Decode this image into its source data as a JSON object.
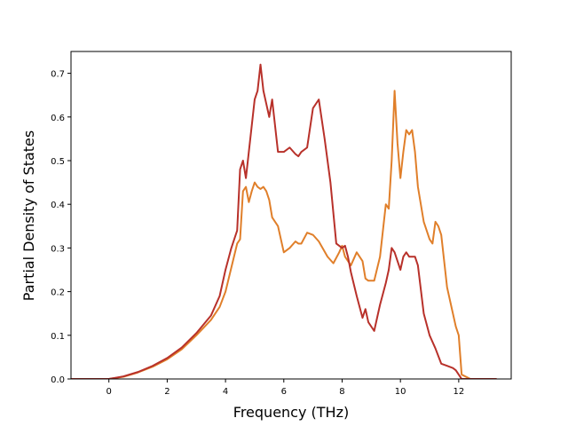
{
  "chart_data": {
    "type": "line",
    "xlabel": "Frequency (THz)",
    "ylabel": "Partial Density of States",
    "xlim": [
      -1.3,
      13.8
    ],
    "ylim": [
      0,
      0.75
    ],
    "xticks": [
      0,
      2,
      4,
      6,
      8,
      10,
      12
    ],
    "yticks": [
      0.0,
      0.1,
      0.2,
      0.3,
      0.4,
      0.5,
      0.6,
      0.7
    ],
    "xtick_labels": [
      "0",
      "2",
      "4",
      "6",
      "8",
      "10",
      "12"
    ],
    "ytick_labels": [
      "0.0",
      "0.1",
      "0.2",
      "0.3",
      "0.4",
      "0.5",
      "0.6",
      "0.7"
    ],
    "grid": false,
    "series": [
      {
        "color": "#e07f2a",
        "x": [
          -1.3,
          0,
          0.5,
          1,
          1.5,
          2,
          2.5,
          3,
          3.5,
          3.8,
          4,
          4.2,
          4.4,
          4.5,
          4.6,
          4.7,
          4.8,
          4.9,
          5,
          5.1,
          5.2,
          5.3,
          5.4,
          5.5,
          5.6,
          5.8,
          6,
          6.2,
          6.4,
          6.5,
          6.6,
          6.8,
          7,
          7.2,
          7.5,
          7.7,
          7.9,
          8,
          8.1,
          8.3,
          8.5,
          8.7,
          8.8,
          8.9,
          9.1,
          9.3,
          9.5,
          9.6,
          9.7,
          9.8,
          9.9,
          10,
          10.1,
          10.2,
          10.3,
          10.4,
          10.5,
          10.6,
          10.8,
          11,
          11.1,
          11.2,
          11.3,
          11.4,
          11.6,
          11.8,
          11.9,
          12,
          12.1,
          12.4,
          13.3
        ],
        "y": [
          0,
          0,
          0.005,
          0.015,
          0.028,
          0.045,
          0.068,
          0.1,
          0.135,
          0.165,
          0.2,
          0.255,
          0.31,
          0.32,
          0.43,
          0.44,
          0.405,
          0.43,
          0.45,
          0.44,
          0.435,
          0.44,
          0.43,
          0.41,
          0.37,
          0.35,
          0.29,
          0.3,
          0.315,
          0.31,
          0.31,
          0.335,
          0.33,
          0.315,
          0.28,
          0.265,
          0.29,
          0.305,
          0.28,
          0.26,
          0.29,
          0.27,
          0.23,
          0.225,
          0.225,
          0.28,
          0.4,
          0.39,
          0.5,
          0.66,
          0.54,
          0.46,
          0.52,
          0.57,
          0.56,
          0.57,
          0.52,
          0.44,
          0.36,
          0.32,
          0.31,
          0.36,
          0.35,
          0.33,
          0.21,
          0.15,
          0.12,
          0.1,
          0.01,
          0,
          0
        ]
      },
      {
        "color": "#b8312a",
        "x": [
          -1.3,
          0,
          0.5,
          1,
          1.5,
          2,
          2.5,
          3,
          3.5,
          3.8,
          4,
          4.2,
          4.4,
          4.5,
          4.6,
          4.7,
          4.8,
          4.9,
          5,
          5.1,
          5.2,
          5.3,
          5.4,
          5.5,
          5.6,
          5.8,
          6,
          6.2,
          6.4,
          6.5,
          6.6,
          6.8,
          7,
          7.2,
          7.4,
          7.6,
          7.8,
          8,
          8.1,
          8.2,
          8.3,
          8.5,
          8.7,
          8.8,
          8.9,
          9.1,
          9.3,
          9.5,
          9.6,
          9.7,
          9.8,
          9.9,
          10,
          10.1,
          10.2,
          10.3,
          10.4,
          10.5,
          10.6,
          10.8,
          11,
          11.2,
          11.4,
          11.6,
          11.8,
          11.9,
          12,
          12.1,
          12.4,
          13.3
        ],
        "y": [
          0,
          0,
          0.006,
          0.016,
          0.03,
          0.048,
          0.072,
          0.105,
          0.145,
          0.19,
          0.25,
          0.3,
          0.34,
          0.48,
          0.5,
          0.46,
          0.52,
          0.58,
          0.64,
          0.66,
          0.72,
          0.66,
          0.63,
          0.6,
          0.64,
          0.52,
          0.52,
          0.53,
          0.515,
          0.51,
          0.52,
          0.53,
          0.62,
          0.64,
          0.55,
          0.45,
          0.31,
          0.3,
          0.305,
          0.28,
          0.245,
          0.19,
          0.14,
          0.16,
          0.13,
          0.11,
          0.17,
          0.22,
          0.25,
          0.3,
          0.29,
          0.27,
          0.25,
          0.28,
          0.29,
          0.28,
          0.28,
          0.28,
          0.26,
          0.15,
          0.1,
          0.07,
          0.035,
          0.03,
          0.025,
          0.02,
          0.01,
          0,
          0,
          0
        ]
      }
    ]
  }
}
